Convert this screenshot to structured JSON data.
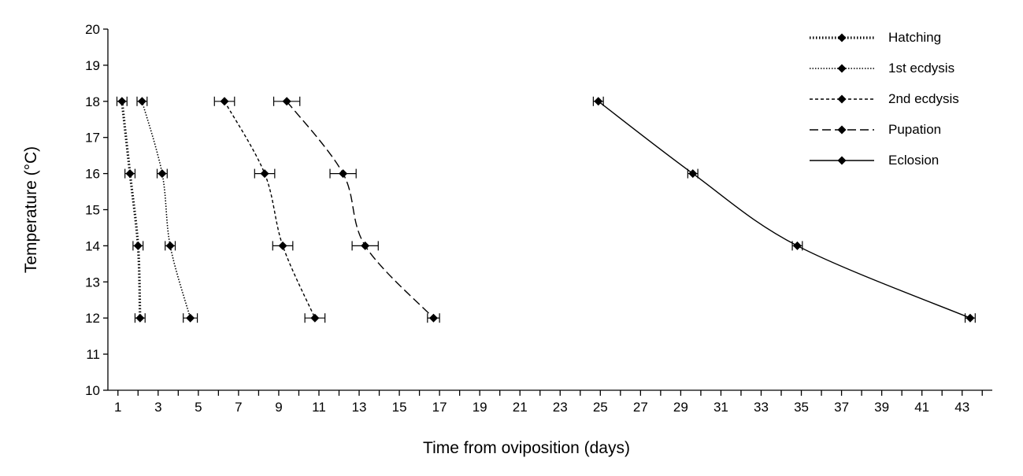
{
  "chart_data": {
    "type": "line",
    "xlabel": "Time from oviposition (days)",
    "ylabel": "Temperature (°C)",
    "xlim": [
      0.5,
      44.5
    ],
    "ylim": [
      10,
      20
    ],
    "x_ticks": [
      "1",
      "3",
      "5",
      "7",
      "9",
      "11",
      "13",
      "15",
      "17",
      "19",
      "21",
      "23",
      "25",
      "27",
      "29",
      "31",
      "33",
      "35",
      "37",
      "39",
      "41",
      "43"
    ],
    "y_ticks": [
      "10",
      "11",
      "12",
      "13",
      "14",
      "15",
      "16",
      "17",
      "18",
      "19",
      "20"
    ],
    "grid": false,
    "legend_position": "top-right",
    "series": [
      {
        "name": "Hatching",
        "style": "dotted-bold",
        "points": [
          {
            "x": 1.2,
            "y": 18,
            "err": 0.25
          },
          {
            "x": 1.6,
            "y": 16,
            "err": 0.25
          },
          {
            "x": 2.0,
            "y": 14,
            "err": 0.25
          },
          {
            "x": 2.1,
            "y": 12,
            "err": 0.25
          }
        ]
      },
      {
        "name": "1st ecdysis",
        "style": "dotted",
        "points": [
          {
            "x": 2.2,
            "y": 18,
            "err": 0.25
          },
          {
            "x": 3.2,
            "y": 16,
            "err": 0.25
          },
          {
            "x": 3.6,
            "y": 14,
            "err": 0.25
          },
          {
            "x": 4.6,
            "y": 12,
            "err": 0.35
          }
        ]
      },
      {
        "name": "2nd ecdysis",
        "style": "short-dash",
        "points": [
          {
            "x": 6.3,
            "y": 18,
            "err": 0.5
          },
          {
            "x": 8.3,
            "y": 16,
            "err": 0.5
          },
          {
            "x": 9.2,
            "y": 14,
            "err": 0.5
          },
          {
            "x": 10.8,
            "y": 12,
            "err": 0.5
          }
        ]
      },
      {
        "name": "Pupation",
        "style": "long-dash",
        "points": [
          {
            "x": 9.4,
            "y": 18,
            "err": 0.65
          },
          {
            "x": 12.2,
            "y": 16,
            "err": 0.65
          },
          {
            "x": 13.3,
            "y": 14,
            "err": 0.65
          },
          {
            "x": 16.7,
            "y": 12,
            "err": 0.3
          }
        ]
      },
      {
        "name": "Eclosion",
        "style": "solid",
        "points": [
          {
            "x": 24.9,
            "y": 18,
            "err": 0.25
          },
          {
            "x": 29.6,
            "y": 16,
            "err": 0.25
          },
          {
            "x": 34.8,
            "y": 14,
            "err": 0.25
          },
          {
            "x": 43.4,
            "y": 12,
            "err": 0.25
          }
        ]
      }
    ]
  }
}
